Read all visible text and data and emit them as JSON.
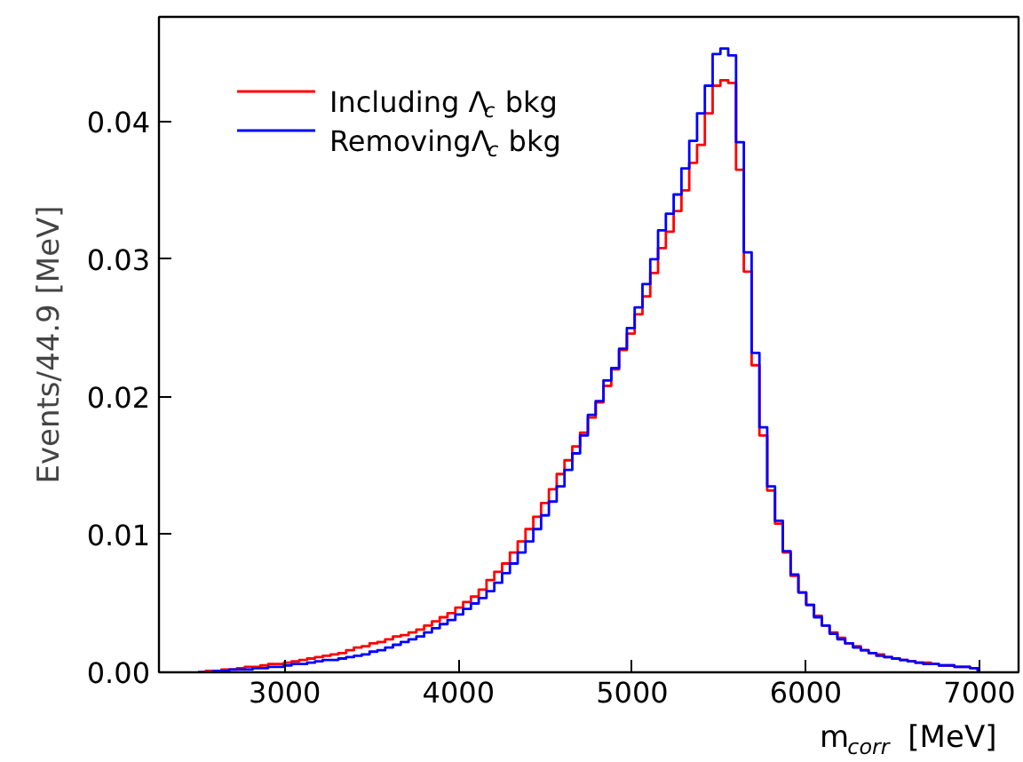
{
  "chart_data": {
    "type": "histogram",
    "xlabel": "m$_{corr}$ [MeV]",
    "ylabel": "Events/44.9 [MeV]",
    "bins": [
      2500,
      2544.9,
      2589.8,
      2634.7,
      2679.6,
      2724.5,
      2769.4,
      2814.3,
      2859.2,
      2904.1,
      2949,
      2993.9,
      3038.8,
      3083.7,
      3128.6,
      3173.5,
      3218.4,
      3263.3,
      3308.2,
      3353.1,
      3398,
      3442.9,
      3487.8,
      3532.7,
      3577.6,
      3622.5,
      3667.4,
      3712.3,
      3757.2,
      3802.1,
      3847,
      3891.9,
      3936.8,
      3981.7,
      4026.6,
      4071.5,
      4116.4,
      4161.3,
      4206.2,
      4251.1,
      4296,
      4340.9,
      4385.8,
      4430.7,
      4475.6,
      4520.5,
      4565.4,
      4610.3,
      4655.2,
      4700.1,
      4745,
      4789.9,
      4834.8,
      4879.7,
      4924.6,
      4969.5,
      5014.4,
      5059.3,
      5104.2,
      5149.1,
      5194,
      5238.9,
      5283.8,
      5328.7,
      5373.6,
      5418.5,
      5463.4,
      5508.3,
      5553.2,
      5598.1,
      5643,
      5687.9,
      5732.8,
      5777.7,
      5822.6,
      5867.5,
      5912.4,
      5957.3,
      6002.2,
      6047.1,
      6092,
      6136.9,
      6181.8,
      6226.7,
      6271.6,
      6316.5,
      6361.4,
      6406.3,
      6451.2,
      6496.1,
      6541,
      6585.9,
      6630.8,
      6675.7,
      6720.6,
      6765.5,
      6810.4,
      6855.3,
      6900.2,
      6945.1,
      6990
    ],
    "series": [
      {
        "name": "Including Λ$_{c}$ bkg",
        "color": "#ff0000",
        "values": [
          0.0,
          0.0001,
          0.0001,
          0.0002,
          0.0002,
          0.0003,
          0.0004,
          0.0004,
          0.0005,
          0.0006,
          0.0006,
          0.0007,
          0.0008,
          0.0009,
          0.001,
          0.0011,
          0.0012,
          0.0013,
          0.0014,
          0.0016,
          0.0018,
          0.0019,
          0.0021,
          0.0022,
          0.0024,
          0.0026,
          0.0027,
          0.0029,
          0.0031,
          0.0034,
          0.0037,
          0.004,
          0.0043,
          0.0047,
          0.0051,
          0.0055,
          0.006,
          0.0067,
          0.0073,
          0.0079,
          0.0087,
          0.0095,
          0.0104,
          0.0113,
          0.0123,
          0.0133,
          0.0144,
          0.0154,
          0.0164,
          0.0174,
          0.0185,
          0.0196,
          0.0208,
          0.022,
          0.0234,
          0.0246,
          0.026,
          0.0273,
          0.029,
          0.0308,
          0.032,
          0.0335,
          0.035,
          0.037,
          0.0383,
          0.0406,
          0.0426,
          0.043,
          0.0428,
          0.0365,
          0.0291,
          0.0223,
          0.0172,
          0.0132,
          0.0108,
          0.0087,
          0.007,
          0.0058,
          0.0049,
          0.0041,
          0.0034,
          0.0029,
          0.0025,
          0.0021,
          0.0019,
          0.0016,
          0.0014,
          0.0013,
          0.0011,
          0.001,
          0.0009,
          0.0008,
          0.0007,
          0.0007,
          0.0006,
          0.0005,
          0.0005,
          0.0004,
          0.0004,
          0.0003
        ]
      },
      {
        "name": "RemovingΛ$_{c}$ bkg",
        "color": "#0000ff",
        "values": [
          0.0,
          0.0,
          0.0001,
          0.0001,
          0.0002,
          0.0002,
          0.0002,
          0.0003,
          0.0003,
          0.0004,
          0.0004,
          0.0005,
          0.0006,
          0.0006,
          0.0007,
          0.0008,
          0.0009,
          0.0009,
          0.001,
          0.0011,
          0.0012,
          0.0013,
          0.0015,
          0.0016,
          0.0018,
          0.002,
          0.0022,
          0.0024,
          0.0026,
          0.0029,
          0.0032,
          0.0035,
          0.0038,
          0.0042,
          0.0046,
          0.005,
          0.0054,
          0.0059,
          0.0065,
          0.0072,
          0.0079,
          0.0087,
          0.0095,
          0.0104,
          0.0114,
          0.0124,
          0.0135,
          0.0147,
          0.0159,
          0.0172,
          0.0187,
          0.0197,
          0.0212,
          0.0221,
          0.0235,
          0.025,
          0.0265,
          0.0282,
          0.03,
          0.0321,
          0.0333,
          0.0347,
          0.0366,
          0.0386,
          0.0406,
          0.0426,
          0.0449,
          0.0453,
          0.0448,
          0.0385,
          0.0305,
          0.0232,
          0.0178,
          0.0135,
          0.011,
          0.0088,
          0.0071,
          0.0058,
          0.0049,
          0.004,
          0.0034,
          0.0028,
          0.0024,
          0.0021,
          0.0018,
          0.0016,
          0.0014,
          0.0012,
          0.0011,
          0.001,
          0.0009,
          0.0008,
          0.0007,
          0.0006,
          0.0006,
          0.0005,
          0.0005,
          0.0004,
          0.0004,
          0.0003
        ]
      }
    ],
    "xlim": [
      2275,
      7225
    ],
    "ylim": [
      0,
      0.0476
    ],
    "xticks": [
      3000,
      4000,
      5000,
      6000,
      7000
    ],
    "yticks": [
      {
        "value": 0,
        "label": "0.00"
      },
      {
        "value": 0.01,
        "label": "0.01"
      },
      {
        "value": 0.02,
        "label": "0.02"
      },
      {
        "value": 0.03,
        "label": "0.03"
      },
      {
        "value": 0.04,
        "label": "0.04"
      }
    ],
    "legend": "top left"
  }
}
